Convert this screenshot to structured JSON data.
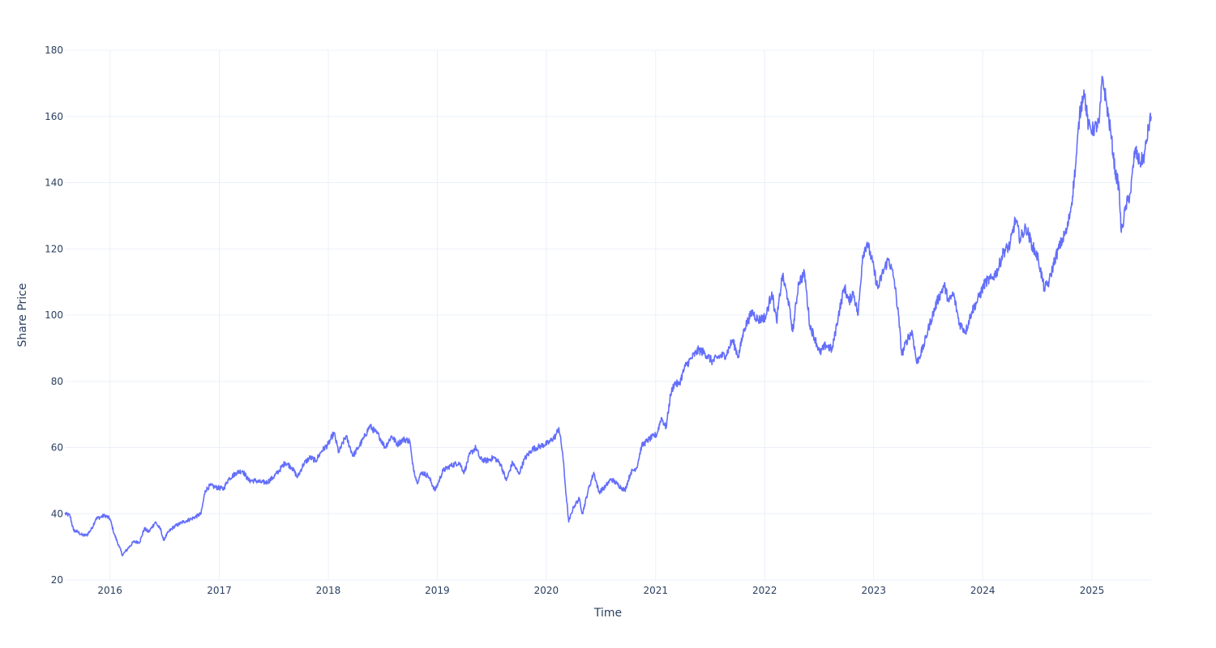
{
  "chart_data": {
    "type": "line",
    "title": "",
    "xlabel": "Time",
    "ylabel": "Share Price",
    "ylim": [
      20,
      180
    ],
    "xlim": [
      "2015-08-03",
      "2025-07-18"
    ],
    "y_ticks": [
      20,
      40,
      60,
      80,
      100,
      120,
      140,
      160,
      180
    ],
    "x_ticks": [
      "2016",
      "2017",
      "2018",
      "2019",
      "2020",
      "2021",
      "2022",
      "2023",
      "2024",
      "2025"
    ],
    "x_tick_dates": [
      "2016-01-01",
      "2017-01-01",
      "2018-01-01",
      "2019-01-01",
      "2020-01-01",
      "2021-01-01",
      "2022-01-01",
      "2023-01-01",
      "2024-01-01",
      "2025-01-01"
    ],
    "grid": true,
    "colors": {
      "line": "#636efa",
      "grid": "#ebf0f8",
      "text": "#2a3f5f",
      "background": "#ffffff"
    },
    "series": [
      {
        "values": [
          [
            "2015-08-03",
            40
          ],
          [
            "2015-08-20",
            39.5
          ],
          [
            "2015-09-01",
            35
          ],
          [
            "2015-09-15",
            34.5
          ],
          [
            "2015-10-01",
            33.5
          ],
          [
            "2015-10-15",
            33.5
          ],
          [
            "2015-11-01",
            35.5
          ],
          [
            "2015-11-15",
            38.5
          ],
          [
            "2015-12-01",
            39
          ],
          [
            "2015-12-15",
            39.5
          ],
          [
            "2016-01-01",
            38.5
          ],
          [
            "2016-01-15",
            34
          ],
          [
            "2016-02-01",
            30
          ],
          [
            "2016-02-12",
            27.5
          ],
          [
            "2016-03-01",
            29.5
          ],
          [
            "2016-03-20",
            31.5
          ],
          [
            "2016-04-10",
            31.5
          ],
          [
            "2016-04-25",
            35.5
          ],
          [
            "2016-05-10",
            34.5
          ],
          [
            "2016-06-01",
            37.5
          ],
          [
            "2016-06-20",
            35
          ],
          [
            "2016-06-28",
            32
          ],
          [
            "2016-07-15",
            34.5
          ],
          [
            "2016-08-01",
            36
          ],
          [
            "2016-09-01",
            37.5
          ],
          [
            "2016-10-01",
            38.5
          ],
          [
            "2016-11-01",
            40
          ],
          [
            "2016-11-15",
            47
          ],
          [
            "2016-12-01",
            48.5
          ],
          [
            "2016-12-20",
            48
          ],
          [
            "2017-01-15",
            47.5
          ],
          [
            "2017-02-01",
            50.5
          ],
          [
            "2017-03-01",
            52.5
          ],
          [
            "2017-03-20",
            53
          ],
          [
            "2017-04-10",
            50
          ],
          [
            "2017-05-01",
            50
          ],
          [
            "2017-05-20",
            49.5
          ],
          [
            "2017-06-10",
            49.5
          ],
          [
            "2017-07-01",
            51
          ],
          [
            "2017-07-20",
            53
          ],
          [
            "2017-08-10",
            55.5
          ],
          [
            "2017-09-01",
            54
          ],
          [
            "2017-09-20",
            51
          ],
          [
            "2017-10-10",
            55
          ],
          [
            "2017-11-01",
            57
          ],
          [
            "2017-11-20",
            56
          ],
          [
            "2017-12-10",
            59
          ],
          [
            "2018-01-01",
            61
          ],
          [
            "2018-01-20",
            64.5
          ],
          [
            "2018-02-05",
            58.5
          ],
          [
            "2018-03-01",
            63.5
          ],
          [
            "2018-03-25",
            57.5
          ],
          [
            "2018-04-15",
            60.5
          ],
          [
            "2018-05-01",
            63
          ],
          [
            "2018-05-20",
            66.5
          ],
          [
            "2018-06-20",
            63.5
          ],
          [
            "2018-07-10",
            60
          ],
          [
            "2018-08-01",
            63.5
          ],
          [
            "2018-08-20",
            61
          ],
          [
            "2018-09-10",
            62.5
          ],
          [
            "2018-10-01",
            62
          ],
          [
            "2018-10-10",
            55
          ],
          [
            "2018-10-25",
            49.5
          ],
          [
            "2018-11-10",
            52.5
          ],
          [
            "2018-12-01",
            51.5
          ],
          [
            "2018-12-25",
            47
          ],
          [
            "2019-01-20",
            53
          ],
          [
            "2019-02-15",
            54.5
          ],
          [
            "2019-03-15",
            55.5
          ],
          [
            "2019-04-01",
            52.5
          ],
          [
            "2019-04-20",
            58
          ],
          [
            "2019-05-10",
            60
          ],
          [
            "2019-05-25",
            56.5
          ],
          [
            "2019-06-15",
            56
          ],
          [
            "2019-07-10",
            57
          ],
          [
            "2019-08-01",
            55
          ],
          [
            "2019-08-20",
            50
          ],
          [
            "2019-09-10",
            55.5
          ],
          [
            "2019-10-01",
            52
          ],
          [
            "2019-10-20",
            56.5
          ],
          [
            "2019-11-15",
            59.5
          ],
          [
            "2019-12-15",
            60.5
          ],
          [
            "2020-01-10",
            61.5
          ],
          [
            "2020-02-01",
            63.5
          ],
          [
            "2020-02-12",
            66
          ],
          [
            "2020-02-25",
            58
          ],
          [
            "2020-03-05",
            48
          ],
          [
            "2020-03-16",
            37.5
          ],
          [
            "2020-04-01",
            42
          ],
          [
            "2020-04-20",
            44.5
          ],
          [
            "2020-05-01",
            40
          ],
          [
            "2020-05-20",
            47
          ],
          [
            "2020-06-08",
            52.5
          ],
          [
            "2020-06-25",
            46.5
          ],
          [
            "2020-07-15",
            48
          ],
          [
            "2020-08-05",
            50.5
          ],
          [
            "2020-08-25",
            49
          ],
          [
            "2020-09-20",
            47
          ],
          [
            "2020-10-10",
            52.5
          ],
          [
            "2020-10-30",
            54
          ],
          [
            "2020-11-15",
            60.5
          ],
          [
            "2020-12-10",
            62.5
          ],
          [
            "2021-01-05",
            64
          ],
          [
            "2021-01-20",
            69
          ],
          [
            "2021-02-05",
            66
          ],
          [
            "2021-02-20",
            76
          ],
          [
            "2021-03-05",
            79.5
          ],
          [
            "2021-03-20",
            79
          ],
          [
            "2021-04-10",
            84.5
          ],
          [
            "2021-05-01",
            87
          ],
          [
            "2021-05-25",
            89.5
          ],
          [
            "2021-06-15",
            88.5
          ],
          [
            "2021-07-10",
            86
          ],
          [
            "2021-08-01",
            87.5
          ],
          [
            "2021-08-25",
            88
          ],
          [
            "2021-09-15",
            92.5
          ],
          [
            "2021-10-05",
            87.5
          ],
          [
            "2021-10-25",
            96
          ],
          [
            "2021-11-20",
            101
          ],
          [
            "2021-12-10",
            98.5
          ],
          [
            "2022-01-05",
            99.5
          ],
          [
            "2022-01-25",
            107
          ],
          [
            "2022-02-10",
            98
          ],
          [
            "2022-03-01",
            112
          ],
          [
            "2022-03-20",
            105
          ],
          [
            "2022-04-05",
            95
          ],
          [
            "2022-04-25",
            110
          ],
          [
            "2022-05-15",
            112.5
          ],
          [
            "2022-06-01",
            97
          ],
          [
            "2022-06-20",
            92.5
          ],
          [
            "2022-07-05",
            88.5
          ],
          [
            "2022-07-25",
            91
          ],
          [
            "2022-08-15",
            89.5
          ],
          [
            "2022-09-05",
            100
          ],
          [
            "2022-09-25",
            108.5
          ],
          [
            "2022-10-10",
            104
          ],
          [
            "2022-10-25",
            107
          ],
          [
            "2022-11-10",
            100
          ],
          [
            "2022-11-25",
            118
          ],
          [
            "2022-12-10",
            122
          ],
          [
            "2022-12-25",
            117
          ],
          [
            "2023-01-15",
            108
          ],
          [
            "2023-02-01",
            113
          ],
          [
            "2023-02-20",
            117
          ],
          [
            "2023-03-10",
            111
          ],
          [
            "2023-03-25",
            100
          ],
          [
            "2023-04-05",
            88
          ],
          [
            "2023-04-25",
            93
          ],
          [
            "2023-05-10",
            95
          ],
          [
            "2023-05-25",
            85.5
          ],
          [
            "2023-06-15",
            90
          ],
          [
            "2023-07-05",
            96.5
          ],
          [
            "2023-08-01",
            104
          ],
          [
            "2023-08-25",
            109
          ],
          [
            "2023-09-10",
            104
          ],
          [
            "2023-09-25",
            106.5
          ],
          [
            "2023-10-15",
            97.5
          ],
          [
            "2023-11-05",
            95
          ],
          [
            "2023-11-25",
            101
          ],
          [
            "2023-12-15",
            104.5
          ],
          [
            "2024-01-10",
            110
          ],
          [
            "2024-02-01",
            111
          ],
          [
            "2024-02-20",
            113.5
          ],
          [
            "2024-03-10",
            119
          ],
          [
            "2024-04-01",
            121
          ],
          [
            "2024-04-20",
            129
          ],
          [
            "2024-05-05",
            123
          ],
          [
            "2024-05-25",
            126.5
          ],
          [
            "2024-06-15",
            121
          ],
          [
            "2024-07-05",
            117
          ],
          [
            "2024-07-25",
            108
          ],
          [
            "2024-08-10",
            110
          ],
          [
            "2024-08-30",
            117
          ],
          [
            "2024-09-20",
            122
          ],
          [
            "2024-10-10",
            126
          ],
          [
            "2024-10-25",
            134
          ],
          [
            "2024-11-08",
            146
          ],
          [
            "2024-11-20",
            160
          ],
          [
            "2024-12-05",
            168
          ],
          [
            "2024-12-20",
            157
          ],
          [
            "2025-01-05",
            156
          ],
          [
            "2025-01-25",
            158
          ],
          [
            "2025-02-05",
            172
          ],
          [
            "2025-02-20",
            163
          ],
          [
            "2025-03-05",
            155
          ],
          [
            "2025-03-20",
            143
          ],
          [
            "2025-04-01",
            139
          ],
          [
            "2025-04-09",
            125
          ],
          [
            "2025-04-25",
            133
          ],
          [
            "2025-05-10",
            137
          ],
          [
            "2025-05-25",
            150
          ],
          [
            "2025-06-10",
            146
          ],
          [
            "2025-06-25",
            148
          ],
          [
            "2025-07-10",
            157
          ],
          [
            "2025-07-18",
            160
          ]
        ]
      }
    ]
  }
}
